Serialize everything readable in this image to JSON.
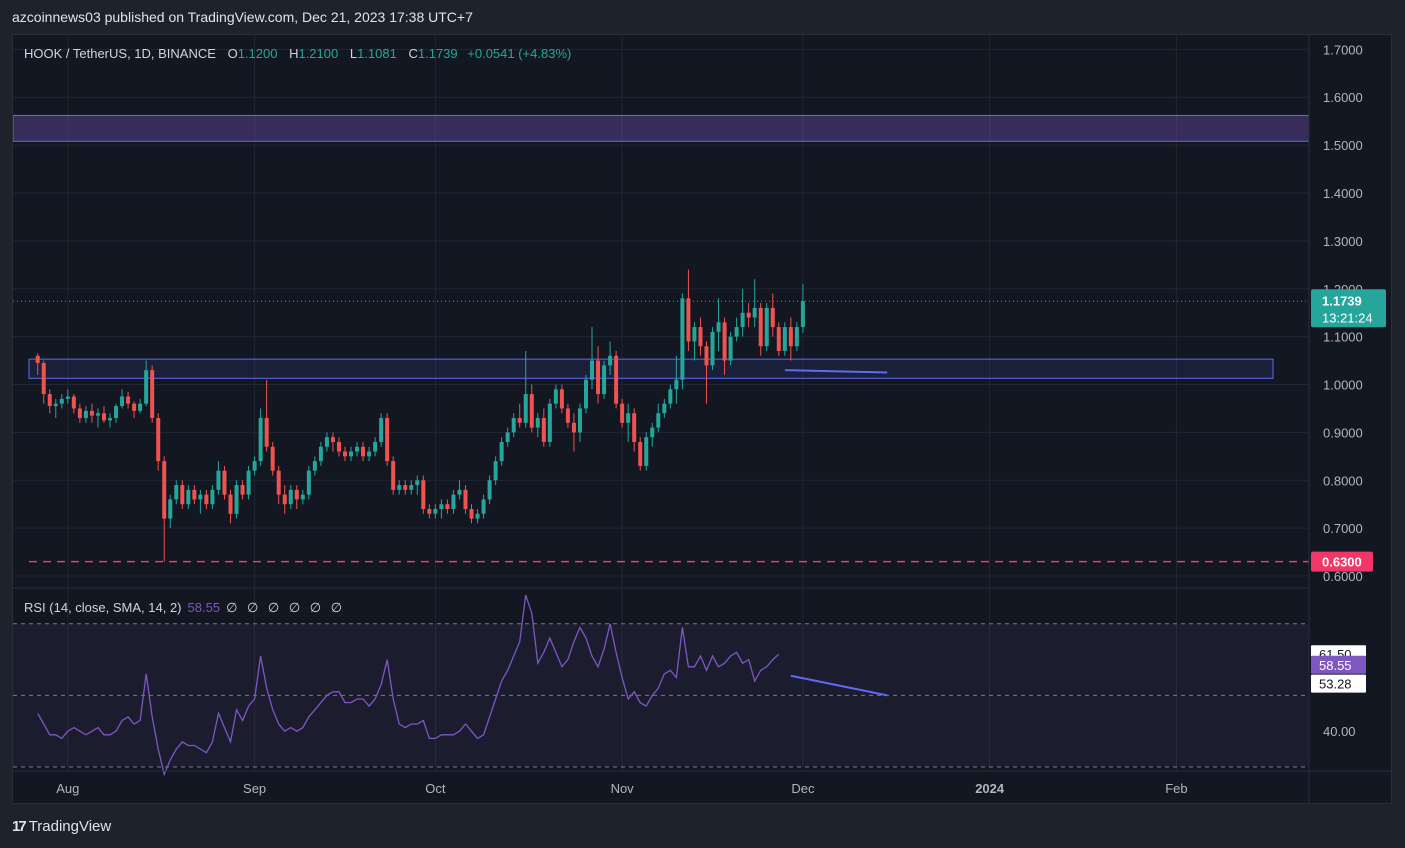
{
  "publisher": "azcoinnews03 published on TradingView.com, Dec 21, 2023 17:38 UTC+7",
  "legend": {
    "symbol": "HOOK / TetherUS, 1D, BINANCE",
    "o_label": "O",
    "o_value": "1.1200",
    "h_label": "H",
    "h_value": "1.2100",
    "l_label": "L",
    "l_value": "1.1081",
    "c_label": "C",
    "c_value": "1.1739",
    "change": "+0.0541 (+4.83%)"
  },
  "rsi_legend": {
    "label": "RSI (14, close, SMA, 14, 2)",
    "value": "58.55",
    "nulls": "∅ ∅ ∅ ∅ ∅ ∅"
  },
  "footer": {
    "brand": "TradingView"
  },
  "colors": {
    "up": "#26a69a",
    "down": "#ef5350",
    "rsi": "#7e57c2",
    "zone_border": "#5b6bf5",
    "support": "#f23667"
  },
  "chart_data": {
    "type": "candlestick",
    "price_axis": {
      "ticks": [
        "1.7000",
        "1.6000",
        "1.5000",
        "1.4000",
        "1.3000",
        "1.2000",
        "1.1000",
        "1.0000",
        "0.9000",
        "0.8000",
        "0.7000",
        "0.6000"
      ],
      "range": [
        0.575,
        1.73
      ]
    },
    "time_axis": {
      "ticks": [
        {
          "label": "Aug",
          "day": 5
        },
        {
          "label": "Sep",
          "day": 36
        },
        {
          "label": "Oct",
          "day": 66
        },
        {
          "label": "Nov",
          "day": 97
        },
        {
          "label": "Dec",
          "day": 127
        },
        {
          "label": "2024",
          "day": 158
        },
        {
          "label": "Feb",
          "day": 189
        }
      ],
      "day_range": [
        -4.1,
        211
      ]
    },
    "last_price": "1.1739",
    "countdown": "13:21:24",
    "support_level": {
      "value": 0.63,
      "label": "0.6300"
    },
    "zones": [
      {
        "from": 1.508,
        "to": 1.562
      },
      {
        "from": 1.013,
        "to": 1.053
      }
    ],
    "candles_ohlc": [
      [
        1.06,
        1.065,
        1.02,
        1.045
      ],
      [
        1.045,
        1.05,
        0.96,
        0.98
      ],
      [
        0.98,
        0.99,
        0.94,
        0.955
      ],
      [
        0.955,
        0.97,
        0.93,
        0.96
      ],
      [
        0.96,
        0.98,
        0.95,
        0.97
      ],
      [
        0.97,
        0.99,
        0.96,
        0.975
      ],
      [
        0.975,
        0.98,
        0.94,
        0.95
      ],
      [
        0.95,
        0.96,
        0.92,
        0.93
      ],
      [
        0.93,
        0.955,
        0.92,
        0.945
      ],
      [
        0.945,
        0.96,
        0.92,
        0.935
      ],
      [
        0.935,
        0.95,
        0.91,
        0.94
      ],
      [
        0.94,
        0.955,
        0.92,
        0.925
      ],
      [
        0.925,
        0.94,
        0.91,
        0.93
      ],
      [
        0.93,
        0.96,
        0.92,
        0.955
      ],
      [
        0.955,
        0.99,
        0.95,
        0.975
      ],
      [
        0.975,
        0.985,
        0.95,
        0.96
      ],
      [
        0.96,
        0.965,
        0.93,
        0.945
      ],
      [
        0.945,
        0.97,
        0.94,
        0.96
      ],
      [
        0.96,
        1.05,
        0.955,
        1.03
      ],
      [
        1.03,
        1.04,
        0.92,
        0.93
      ],
      [
        0.93,
        0.94,
        0.82,
        0.84
      ],
      [
        0.84,
        0.85,
        0.63,
        0.72
      ],
      [
        0.72,
        0.77,
        0.7,
        0.76
      ],
      [
        0.76,
        0.8,
        0.75,
        0.79
      ],
      [
        0.79,
        0.8,
        0.74,
        0.75
      ],
      [
        0.75,
        0.79,
        0.74,
        0.78
      ],
      [
        0.78,
        0.79,
        0.75,
        0.76
      ],
      [
        0.76,
        0.78,
        0.73,
        0.77
      ],
      [
        0.77,
        0.78,
        0.74,
        0.75
      ],
      [
        0.75,
        0.79,
        0.74,
        0.78
      ],
      [
        0.78,
        0.84,
        0.77,
        0.82
      ],
      [
        0.82,
        0.83,
        0.76,
        0.77
      ],
      [
        0.77,
        0.78,
        0.71,
        0.73
      ],
      [
        0.73,
        0.8,
        0.72,
        0.79
      ],
      [
        0.79,
        0.8,
        0.76,
        0.77
      ],
      [
        0.77,
        0.83,
        0.76,
        0.82
      ],
      [
        0.82,
        0.85,
        0.81,
        0.84
      ],
      [
        0.84,
        0.95,
        0.83,
        0.93
      ],
      [
        0.93,
        1.01,
        0.86,
        0.87
      ],
      [
        0.87,
        0.88,
        0.81,
        0.82
      ],
      [
        0.82,
        0.83,
        0.75,
        0.77
      ],
      [
        0.77,
        0.79,
        0.73,
        0.75
      ],
      [
        0.75,
        0.79,
        0.74,
        0.78
      ],
      [
        0.78,
        0.79,
        0.74,
        0.76
      ],
      [
        0.76,
        0.78,
        0.75,
        0.77
      ],
      [
        0.77,
        0.83,
        0.76,
        0.82
      ],
      [
        0.82,
        0.85,
        0.81,
        0.84
      ],
      [
        0.84,
        0.88,
        0.83,
        0.87
      ],
      [
        0.87,
        0.9,
        0.86,
        0.89
      ],
      [
        0.89,
        0.9,
        0.86,
        0.88
      ],
      [
        0.88,
        0.89,
        0.85,
        0.86
      ],
      [
        0.86,
        0.87,
        0.84,
        0.85
      ],
      [
        0.85,
        0.87,
        0.84,
        0.86
      ],
      [
        0.86,
        0.88,
        0.85,
        0.87
      ],
      [
        0.87,
        0.88,
        0.84,
        0.85
      ],
      [
        0.85,
        0.87,
        0.84,
        0.86
      ],
      [
        0.86,
        0.89,
        0.85,
        0.88
      ],
      [
        0.88,
        0.94,
        0.87,
        0.93
      ],
      [
        0.93,
        0.94,
        0.83,
        0.84
      ],
      [
        0.84,
        0.85,
        0.77,
        0.78
      ],
      [
        0.78,
        0.8,
        0.77,
        0.79
      ],
      [
        0.79,
        0.8,
        0.77,
        0.78
      ],
      [
        0.78,
        0.8,
        0.77,
        0.79
      ],
      [
        0.79,
        0.81,
        0.77,
        0.8
      ],
      [
        0.8,
        0.81,
        0.73,
        0.74
      ],
      [
        0.74,
        0.75,
        0.72,
        0.73
      ],
      [
        0.73,
        0.75,
        0.72,
        0.74
      ],
      [
        0.74,
        0.76,
        0.72,
        0.75
      ],
      [
        0.75,
        0.76,
        0.73,
        0.74
      ],
      [
        0.74,
        0.78,
        0.73,
        0.77
      ],
      [
        0.77,
        0.8,
        0.76,
        0.78
      ],
      [
        0.78,
        0.79,
        0.73,
        0.74
      ],
      [
        0.74,
        0.75,
        0.71,
        0.72
      ],
      [
        0.72,
        0.74,
        0.71,
        0.73
      ],
      [
        0.73,
        0.77,
        0.72,
        0.76
      ],
      [
        0.76,
        0.81,
        0.75,
        0.8
      ],
      [
        0.8,
        0.85,
        0.79,
        0.84
      ],
      [
        0.84,
        0.89,
        0.83,
        0.88
      ],
      [
        0.88,
        0.91,
        0.87,
        0.9
      ],
      [
        0.9,
        0.94,
        0.89,
        0.93
      ],
      [
        0.93,
        0.96,
        0.91,
        0.92
      ],
      [
        0.92,
        1.07,
        0.91,
        0.98
      ],
      [
        0.98,
        1.0,
        0.9,
        0.91
      ],
      [
        0.91,
        0.94,
        0.89,
        0.93
      ],
      [
        0.93,
        0.95,
        0.87,
        0.88
      ],
      [
        0.88,
        0.97,
        0.87,
        0.96
      ],
      [
        0.96,
        1.0,
        0.95,
        0.99
      ],
      [
        0.99,
        1.0,
        0.94,
        0.95
      ],
      [
        0.95,
        0.96,
        0.91,
        0.92
      ],
      [
        0.92,
        0.94,
        0.86,
        0.9
      ],
      [
        0.9,
        0.96,
        0.88,
        0.95
      ],
      [
        0.95,
        1.02,
        0.94,
        1.01
      ],
      [
        1.01,
        1.12,
        0.99,
        1.05
      ],
      [
        1.05,
        1.08,
        0.96,
        0.98
      ],
      [
        0.98,
        1.05,
        0.97,
        1.04
      ],
      [
        1.04,
        1.09,
        1.02,
        1.06
      ],
      [
        1.06,
        1.07,
        0.95,
        0.96
      ],
      [
        0.96,
        0.97,
        0.91,
        0.92
      ],
      [
        0.92,
        0.96,
        0.88,
        0.94
      ],
      [
        0.94,
        0.95,
        0.86,
        0.88
      ],
      [
        0.88,
        0.89,
        0.82,
        0.83
      ],
      [
        0.83,
        0.9,
        0.82,
        0.89
      ],
      [
        0.89,
        0.92,
        0.87,
        0.91
      ],
      [
        0.91,
        0.96,
        0.9,
        0.94
      ],
      [
        0.94,
        0.97,
        0.93,
        0.96
      ],
      [
        0.96,
        1.0,
        0.95,
        0.99
      ],
      [
        0.99,
        1.06,
        0.96,
        1.01
      ],
      [
        1.01,
        1.19,
        0.99,
        1.18
      ],
      [
        1.18,
        1.24,
        1.07,
        1.09
      ],
      [
        1.09,
        1.13,
        1.05,
        1.12
      ],
      [
        1.12,
        1.14,
        1.06,
        1.08
      ],
      [
        1.08,
        1.09,
        0.96,
        1.04
      ],
      [
        1.04,
        1.12,
        1.03,
        1.11
      ],
      [
        1.11,
        1.18,
        1.07,
        1.13
      ],
      [
        1.13,
        1.14,
        1.02,
        1.05
      ],
      [
        1.05,
        1.11,
        1.04,
        1.1
      ],
      [
        1.1,
        1.14,
        1.09,
        1.12
      ],
      [
        1.12,
        1.2,
        1.1,
        1.15
      ],
      [
        1.15,
        1.17,
        1.12,
        1.14
      ],
      [
        1.14,
        1.22,
        1.12,
        1.16
      ],
      [
        1.16,
        1.17,
        1.06,
        1.08
      ],
      [
        1.08,
        1.17,
        1.07,
        1.16
      ],
      [
        1.16,
        1.19,
        1.1,
        1.12
      ],
      [
        1.12,
        1.13,
        1.06,
        1.07
      ],
      [
        1.07,
        1.13,
        1.06,
        1.12
      ],
      [
        1.12,
        1.14,
        1.05,
        1.08
      ],
      [
        1.08,
        1.13,
        1.07,
        1.12
      ],
      [
        1.12,
        1.21,
        1.108,
        1.174
      ]
    ],
    "rsi": {
      "range": [
        30,
        80
      ],
      "upper_band": 70,
      "lower_band": 50,
      "base_band": 30,
      "tick_label": "40.00",
      "band_ticks": [
        {
          "label": "61.50",
          "value": 61.5
        },
        {
          "label": "58.55",
          "value": 58.55
        },
        {
          "label": "53.28",
          "value": 53.28
        }
      ],
      "values": [
        45,
        42,
        39,
        39,
        38,
        40,
        41,
        40,
        39,
        40,
        41,
        39,
        39,
        40,
        43,
        44,
        42,
        43,
        56,
        44,
        35,
        28,
        32,
        35,
        37,
        36,
        36,
        35,
        34,
        37,
        45,
        41,
        37,
        46,
        43,
        47,
        49,
        61,
        52,
        46,
        42,
        40,
        41,
        40,
        41,
        44,
        46,
        48,
        50,
        51,
        51,
        48,
        48,
        49,
        49,
        47,
        49,
        53,
        60,
        49,
        42,
        41,
        42,
        42,
        43,
        38,
        38,
        39,
        39,
        39,
        40,
        42,
        40,
        38,
        39,
        44,
        49,
        54,
        57,
        61,
        65,
        78,
        73,
        59,
        62,
        66,
        62,
        58,
        60,
        65,
        69,
        66,
        61,
        58,
        63,
        70,
        62,
        55,
        49,
        51,
        48,
        47,
        50,
        52,
        56,
        57,
        55,
        69,
        58,
        58,
        61,
        57,
        61,
        58,
        59,
        61,
        62,
        59,
        60,
        54,
        57,
        58,
        60,
        61.5
      ]
    },
    "annotations": {
      "price_divergence": {
        "start_day": 124,
        "end_day": 141,
        "start_price": 1.03,
        "end_price": 1.025
      },
      "rsi_divergence": {
        "start_day": 125,
        "end_day": 141,
        "start_value": 55.5,
        "end_value": 50
      }
    }
  }
}
